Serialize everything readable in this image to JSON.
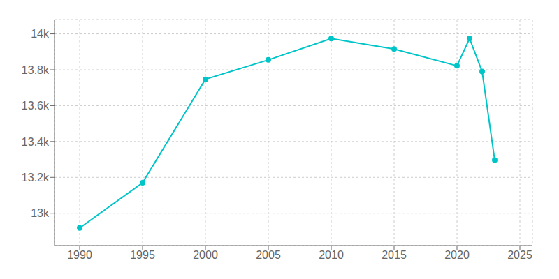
{
  "chart_data": {
    "type": "line",
    "x": [
      1990,
      1995,
      2000,
      2005,
      2010,
      2015,
      2020,
      2021,
      2022,
      2023
    ],
    "values": [
      12918,
      13170,
      13747,
      13855,
      13974,
      13916,
      13822,
      13974,
      13790,
      13296
    ],
    "color": "#00c5c8",
    "marker": "circle",
    "xlim": [
      1988,
      2026
    ],
    "xticks": [
      1990,
      1995,
      2000,
      2005,
      2010,
      2015,
      2020,
      2025
    ],
    "ylim": [
      12820,
      14080
    ],
    "yticks": [
      {
        "value": 13000,
        "label": "13k"
      },
      {
        "value": 13200,
        "label": "13.2k"
      },
      {
        "value": 13400,
        "label": "13.4k"
      },
      {
        "value": 13600,
        "label": "13.6k"
      },
      {
        "value": 13800,
        "label": "13.8k"
      },
      {
        "value": 14000,
        "label": "14k"
      }
    ],
    "grid": true
  }
}
